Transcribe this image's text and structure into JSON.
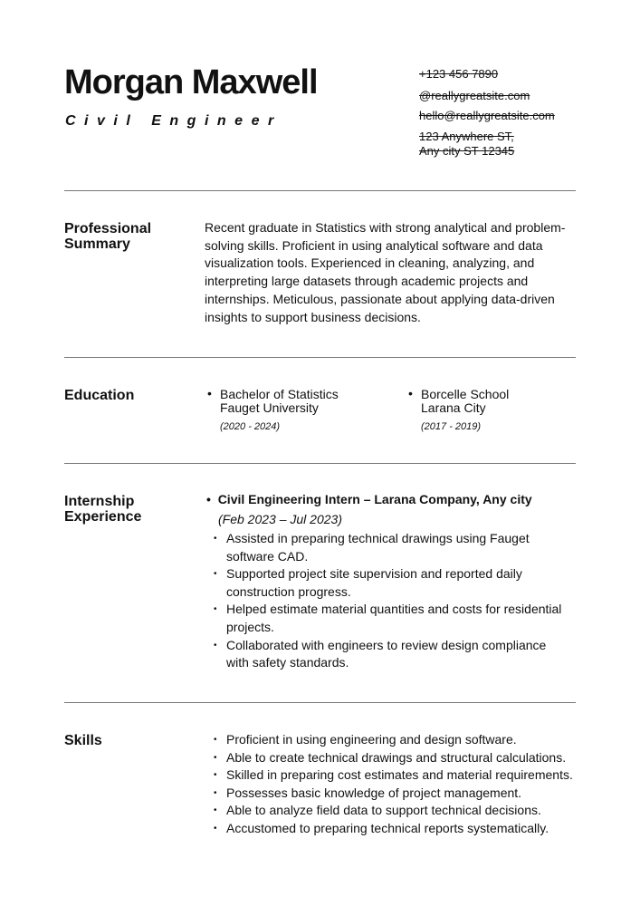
{
  "header": {
    "name": "Morgan Maxwell",
    "title": "Civil Engineer",
    "contact": [
      "+123 456 7890",
      "@reallygreatsite.com",
      "hello@reallygreatsite.com",
      "123 Anywhere ST,",
      "Any city ST 12345"
    ]
  },
  "summary": {
    "heading_1": "Professional",
    "heading_2": "Summary",
    "lines": [
      "Recent graduate in Statistics with strong analytical and problem-",
      "solving skills. Proficient in using analytical software and data",
      "visualization tools. Experienced in cleaning, analyzing, and",
      "interpreting large datasets through academic projects and",
      "internships. Meticulous, passionate about applying data-driven",
      "insights to support business decisions."
    ]
  },
  "education": {
    "heading": "Education",
    "items": [
      {
        "degree": "Bachelor of Statistics",
        "school": "Fauget University",
        "dates": "(2020 - 2024)"
      },
      {
        "degree": "Borcelle School",
        "school": "Larana City",
        "dates": "(2017 - 2019)"
      }
    ]
  },
  "internship": {
    "heading_1": "Internship",
    "heading_2": "Experience",
    "role": "Civil Engineering Intern – Larana Company, Any city",
    "dates": "(Feb 2023 – Jul 2023)",
    "bullets": [
      [
        "Assisted in preparing technical drawings using Fauget",
        "software CAD."
      ],
      [
        "Supported project site supervision and reported daily",
        "construction progress."
      ],
      [
        "Helped estimate material quantities and costs for residential",
        "projects."
      ],
      [
        "Collaborated with engineers to review design compliance",
        "with safety standards."
      ]
    ]
  },
  "skills": {
    "heading": "Skills",
    "items": [
      "Proficient in using engineering and design software.",
      "Able to create technical drawings and structural calculations.",
      "Skilled in preparing cost estimates and material requirements.",
      "Possesses basic knowledge of project management.",
      "Able to analyze field data to support technical decisions.",
      "Accustomed to preparing technical reports systematically."
    ]
  }
}
